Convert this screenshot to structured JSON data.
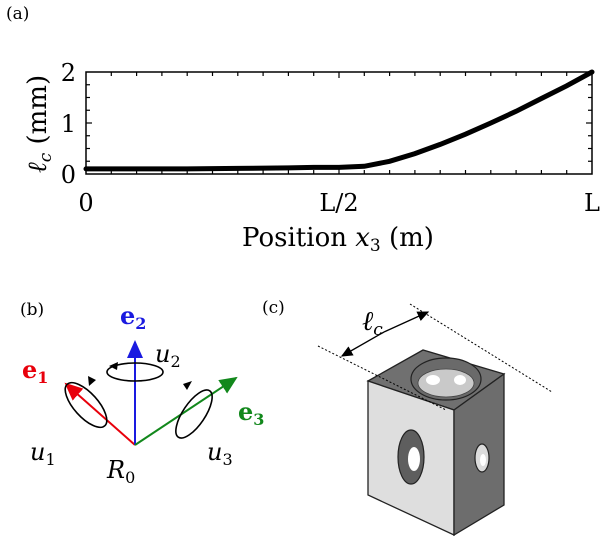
{
  "panels": {
    "a": "(a)",
    "b": "(b)",
    "c": "(c)"
  },
  "chart_data": {
    "type": "line",
    "xlabel_text": "Position ",
    "xlabel_var": "x",
    "xlabel_sub": "3",
    "xlabel_unit": " (m)",
    "ylabel_var": "ℓ",
    "ylabel_sub": "c",
    "ylabel_unit": " (mm)",
    "x_ticklabels": [
      "0",
      "L/2",
      "L"
    ],
    "y_ticklabels": [
      "0",
      "1",
      "2"
    ],
    "xlim": [
      0,
      1
    ],
    "ylim": [
      0,
      2
    ],
    "series": [
      {
        "color": "#000000",
        "x": [
          0,
          0.1,
          0.2,
          0.3,
          0.4,
          0.45,
          0.5,
          0.55,
          0.6,
          0.65,
          0.7,
          0.75,
          0.8,
          0.85,
          0.9,
          0.95,
          1.0
        ],
        "y": [
          0.1,
          0.1,
          0.1,
          0.11,
          0.12,
          0.13,
          0.13,
          0.15,
          0.25,
          0.4,
          0.58,
          0.78,
          1.0,
          1.23,
          1.48,
          1.73,
          2.0
        ]
      }
    ]
  },
  "frame": {
    "e1": "e",
    "e1_sub": "1",
    "e1_color": "#e8000b",
    "e2": "e",
    "e2_sub": "2",
    "e2_color": "#1a1ae0",
    "e3": "e",
    "e3_sub": "3",
    "e3_color": "#12881c",
    "u1": "u",
    "u1_sub": "1",
    "u2": "u",
    "u2_sub": "2",
    "u3": "u",
    "u3_sub": "3",
    "origin": "R",
    "origin_sub": "0"
  },
  "cube": {
    "dim_var": "ℓ",
    "dim_sub": "c"
  }
}
